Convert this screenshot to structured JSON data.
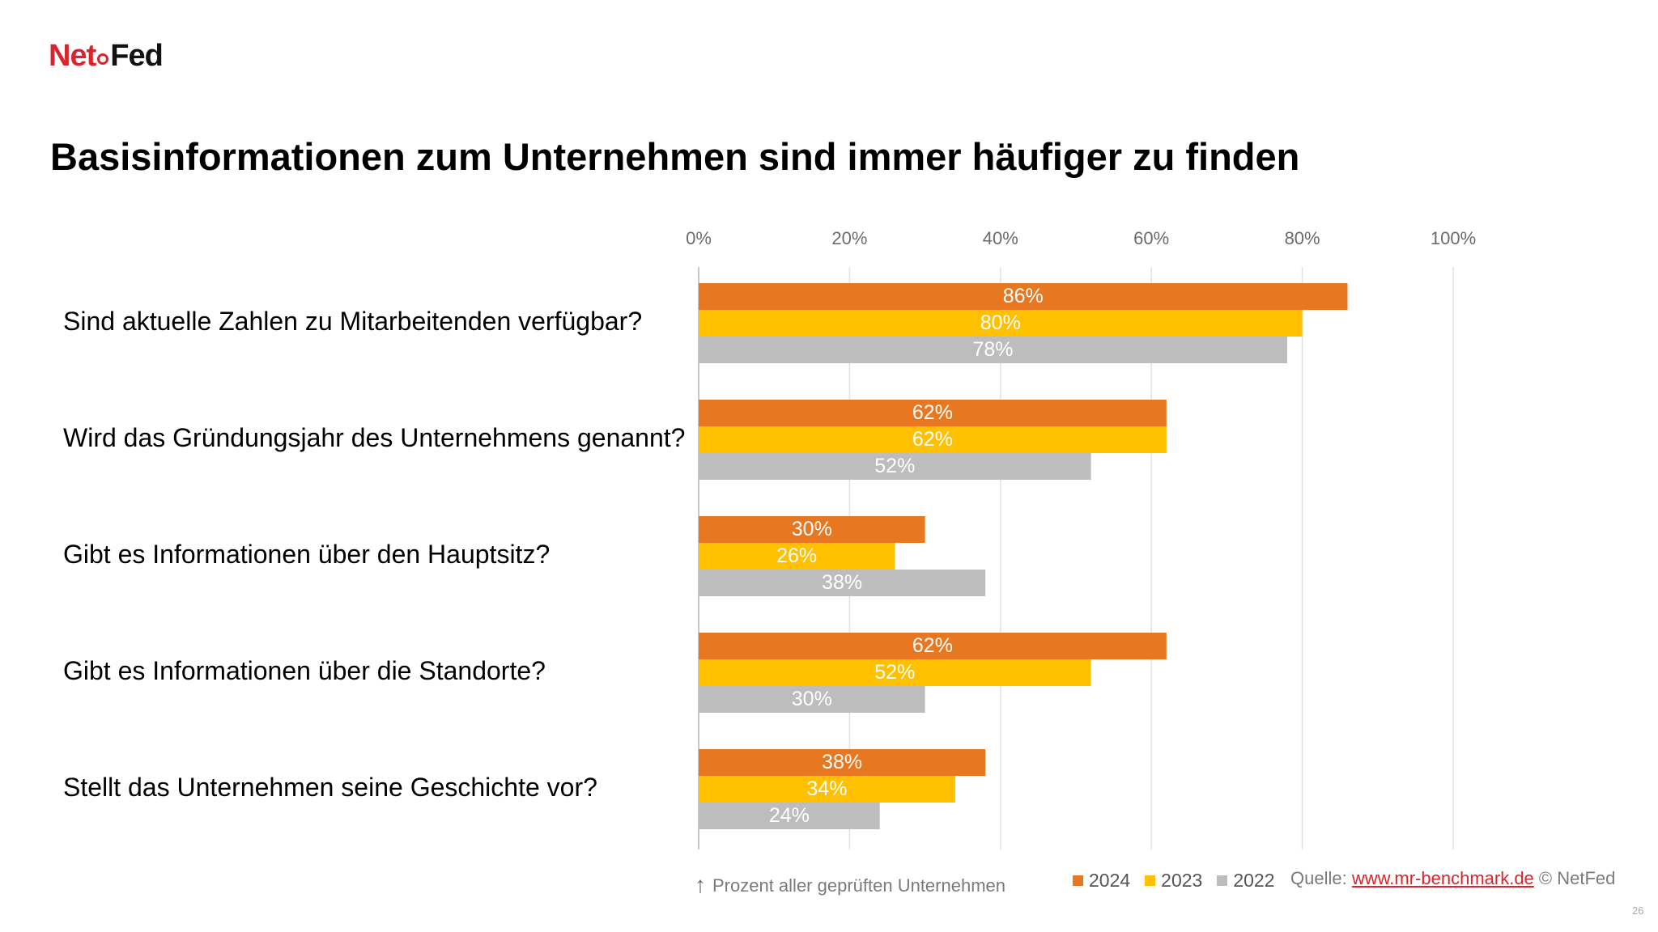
{
  "logo": {
    "part1": "Net",
    "part2": "Fed"
  },
  "title": "Basisinformationen zum Unternehmen sind immer häufiger zu finden",
  "chart_data": {
    "type": "bar",
    "orientation": "horizontal",
    "categories": [
      "Sind aktuelle Zahlen zu Mitarbeitenden verfügbar?",
      "Wird das Gründungsjahr des Unternehmens genannt?",
      "Gibt es Informationen über den Hauptsitz?",
      "Gibt es Informationen über die Standorte?",
      "Stellt das Unternehmen seine Geschichte vor?"
    ],
    "series": [
      {
        "name": "2024",
        "color": "#e87722",
        "values": [
          86,
          62,
          30,
          62,
          38
        ]
      },
      {
        "name": "2023",
        "color": "#ffc000",
        "values": [
          80,
          62,
          26,
          52,
          34
        ]
      },
      {
        "name": "2022",
        "color": "#bdbdbd",
        "values": [
          78,
          52,
          38,
          30,
          24
        ]
      }
    ],
    "xlim": [
      0,
      100
    ],
    "xticks": [
      "0%",
      "20%",
      "40%",
      "60%",
      "80%",
      "100%"
    ],
    "xaxis_position": "top",
    "value_suffix": "%",
    "grid": true,
    "legend_position": "bottom-right",
    "xlabel": "Prozent aller geprüften Unternehmen"
  },
  "source": {
    "prefix": "Quelle:",
    "link": "www.mr-benchmark.de",
    "suffix": "© NetFed"
  },
  "page_number": "26"
}
